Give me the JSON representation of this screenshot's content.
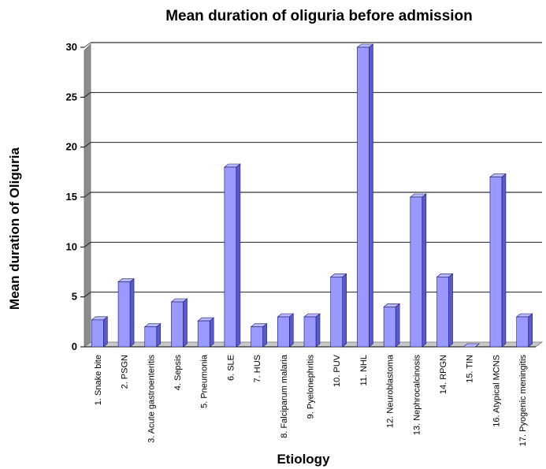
{
  "chart_data": {
    "type": "bar",
    "title": "Mean duration of oliguria before admission",
    "xlabel": "Etiology",
    "ylabel": "Mean duration of Oliguria",
    "ylim": [
      0,
      30
    ],
    "yticks": [
      0,
      5,
      10,
      15,
      20,
      25,
      30
    ],
    "grid": true,
    "legend": "none",
    "bar_color": "#9999FF",
    "categories": [
      "1. Snake bite",
      "2. PSGN",
      "3. Acute gastroenteritis",
      "4. Sepsis",
      "5. Pneumonia",
      "6. SLE",
      "7. HUS",
      "8. Falciparum malaria",
      "9. Pyelonephritis",
      "10. PUV",
      "11. NHL",
      "12. Neuroblastoma",
      "13. Nephrocalcinosis",
      "14. RPGN",
      "15. TIN",
      "16. Atypical MCNS",
      "17. Pyogenic meningitis"
    ],
    "values": [
      2.7,
      6.5,
      2,
      4.5,
      2.6,
      18,
      2,
      3,
      3,
      7,
      30,
      4,
      15,
      7,
      0,
      17,
      3
    ]
  }
}
